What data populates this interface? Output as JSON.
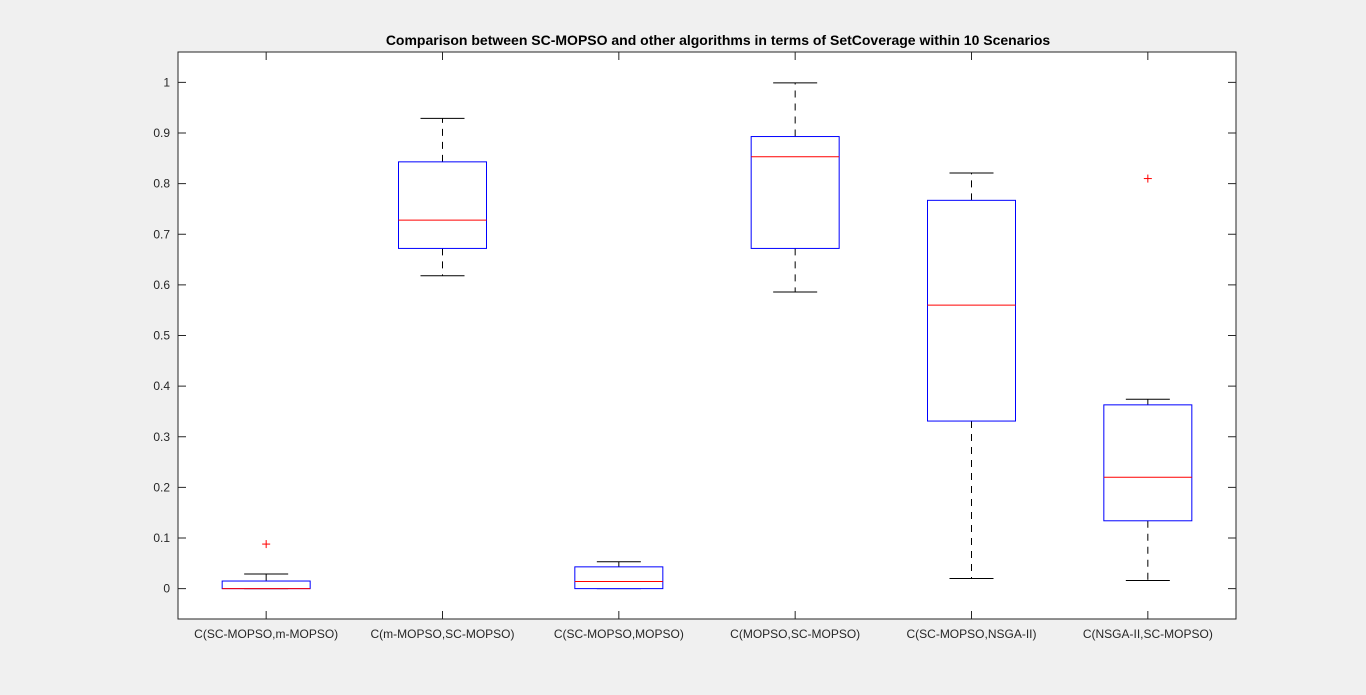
{
  "chart_data": {
    "type": "box",
    "title": "Comparison between SC-MOPSO and other algorithms in terms of SetCoverage within 10 Scenarios",
    "xlabel": "",
    "ylabel": "",
    "ylim": [
      -0.06,
      1.06
    ],
    "yticks": [
      "0",
      "0.1",
      "0.2",
      "0.3",
      "0.4",
      "0.5",
      "0.6",
      "0.7",
      "0.8",
      "0.9",
      "1"
    ],
    "grid": false,
    "colors": {
      "box": "#0000ff",
      "median": "#ff0000",
      "whisker": "#000000",
      "outlier": "#ff0000",
      "background": "#f0f0f0",
      "axes": "#ffffff"
    },
    "categories": [
      "C(SC-MOPSO,m-MOPSO)",
      "C(m-MOPSO,SC-MOPSO)",
      "C(SC-MOPSO,MOPSO)",
      "C(MOPSO,SC-MOPSO)",
      "C(SC-MOPSO,NSGA-II)",
      "C(NSGA-II,SC-MOPSO)"
    ],
    "boxes": [
      {
        "min": 0.0,
        "q1": 0.0,
        "median": 0.0,
        "q3": 0.015,
        "max": 0.029,
        "outliers": [
          0.088
        ]
      },
      {
        "min": 0.618,
        "q1": 0.672,
        "median": 0.728,
        "q3": 0.843,
        "max": 0.929,
        "outliers": []
      },
      {
        "min": 0.0,
        "q1": 0.0,
        "median": 0.014,
        "q3": 0.043,
        "max": 0.053,
        "outliers": []
      },
      {
        "min": 0.586,
        "q1": 0.672,
        "median": 0.853,
        "q3": 0.893,
        "max": 0.999,
        "outliers": []
      },
      {
        "min": 0.02,
        "q1": 0.331,
        "median": 0.56,
        "q3": 0.767,
        "max": 0.821,
        "outliers": []
      },
      {
        "min": 0.016,
        "q1": 0.134,
        "median": 0.22,
        "q3": 0.363,
        "max": 0.374,
        "outliers": [
          0.81
        ]
      }
    ]
  }
}
